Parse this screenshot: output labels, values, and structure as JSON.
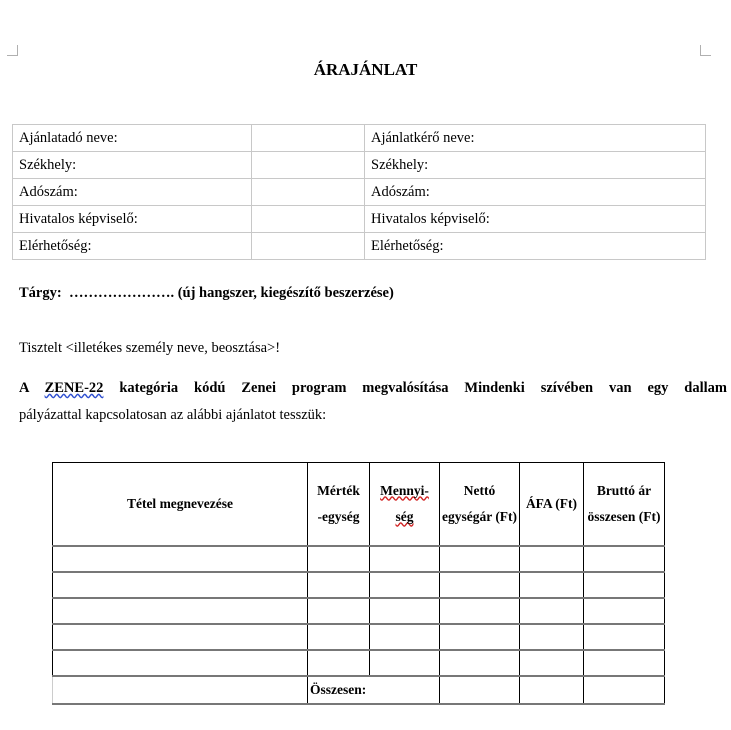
{
  "title": "ÁRAJÁNLAT",
  "info_table": {
    "rows": [
      {
        "left": "Ajánlatadó neve:",
        "right": "Ajánlatkérő neve:"
      },
      {
        "left": "Székhely:",
        "right": "Székhely:"
      },
      {
        "left": "Adószám:",
        "right": "Adószám:"
      },
      {
        "left": "Hivatalos képviselő:",
        "right": "Hivatalos képviselő:"
      },
      {
        "left": "Elérhetőség:",
        "right": "Elérhetőség:"
      }
    ]
  },
  "subject": {
    "label": "Tárgy:",
    "text": "…………………. (új hangszer, kiegészítő beszerzése)"
  },
  "greeting": "Tisztelt <illetékes személy neve, beosztása>!",
  "intro": {
    "a": "A",
    "code": "ZENE-22",
    "bold_rest": "kategória kódú Zenei program megvalósítása Mindenki szívében van egy dallam",
    "line2": "pályázattal kapcsolatosan az alábbi ajánlatot tesszük:"
  },
  "items_table": {
    "headers": {
      "name": "Tétel megnevezése",
      "unit1": "Mérték",
      "unit2": "-egység",
      "qty1": "Mennyi-",
      "qty2": "ség",
      "net": "Nettó egységár (Ft)",
      "vat": "ÁFA (Ft)",
      "gross": "Bruttó ár összesen (Ft)"
    },
    "total_label": "Összesen:"
  }
}
